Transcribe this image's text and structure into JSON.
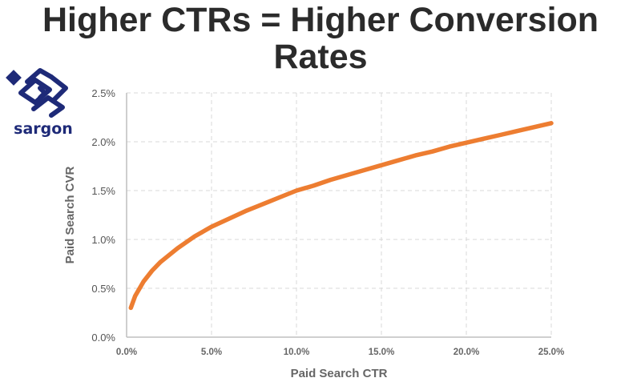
{
  "title_line1": "Higher CTRs = Higher Conversion",
  "title_line2": "Rates",
  "logo": {
    "text": "sargon",
    "icon": "sargon-logo-icon",
    "color": "#1e2a78"
  },
  "colors": {
    "line": "#ed7d31",
    "grid": "#d9d9d9",
    "axis": "#bfbfbf"
  },
  "chart_data": {
    "type": "line",
    "title": "Higher CTRs = Higher Conversion Rates",
    "xlabel": "Paid Search CTR",
    "ylabel": "Paid Search CVR",
    "xlim": [
      0,
      25
    ],
    "ylim": [
      0,
      2.5
    ],
    "x_ticks": [
      "0.0%",
      "5.0%",
      "10.0%",
      "15.0%",
      "20.0%",
      "25.0%"
    ],
    "y_ticks": [
      "0.0%",
      "0.5%",
      "1.0%",
      "1.5%",
      "2.0%",
      "2.5%"
    ],
    "grid": true,
    "series": [
      {
        "x": [
          0.25,
          0.5,
          1,
          1.5,
          2,
          3,
          4,
          5,
          6,
          7,
          8,
          9,
          10,
          11,
          12,
          13,
          14,
          15,
          16,
          17,
          18,
          19,
          20,
          21,
          22,
          23,
          24,
          25
        ],
        "values": [
          0.3,
          0.42,
          0.57,
          0.68,
          0.77,
          0.91,
          1.03,
          1.13,
          1.21,
          1.29,
          1.36,
          1.43,
          1.5,
          1.55,
          1.61,
          1.66,
          1.71,
          1.76,
          1.81,
          1.86,
          1.9,
          1.95,
          1.99,
          2.03,
          2.07,
          2.11,
          2.15,
          2.19
        ]
      }
    ]
  }
}
